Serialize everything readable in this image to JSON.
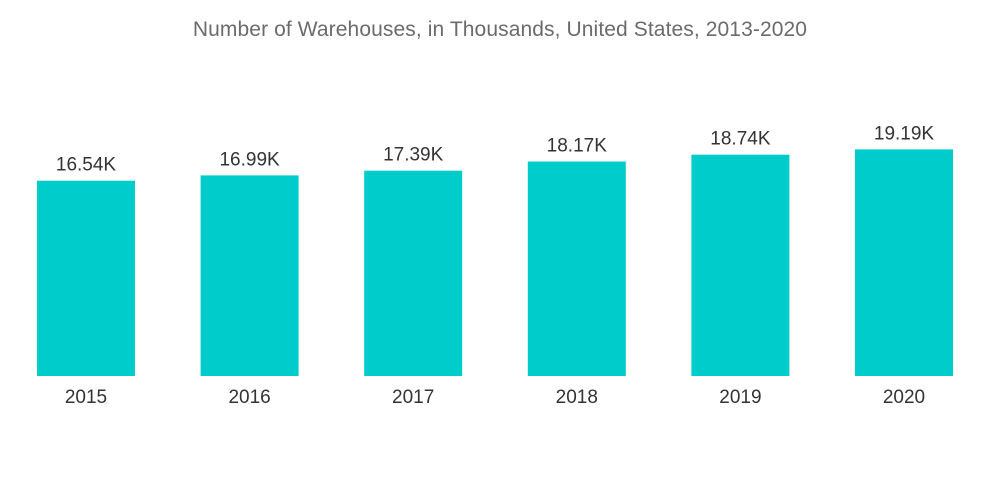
{
  "chart_data": {
    "type": "bar",
    "title": "Number of Warehouses, in Thousands, United States, 2013-2020",
    "xlabel": "",
    "ylabel": "",
    "categories": [
      "2015",
      "2016",
      "2017",
      "2018",
      "2019",
      "2020"
    ],
    "values": [
      16.54,
      16.99,
      17.39,
      18.17,
      18.74,
      19.19
    ],
    "data_labels": [
      "16.54K",
      "16.99K",
      "17.39K",
      "18.17K",
      "18.74K",
      "19.19K"
    ],
    "grid": false,
    "legend": "none",
    "bar_color": "#00cccc"
  }
}
